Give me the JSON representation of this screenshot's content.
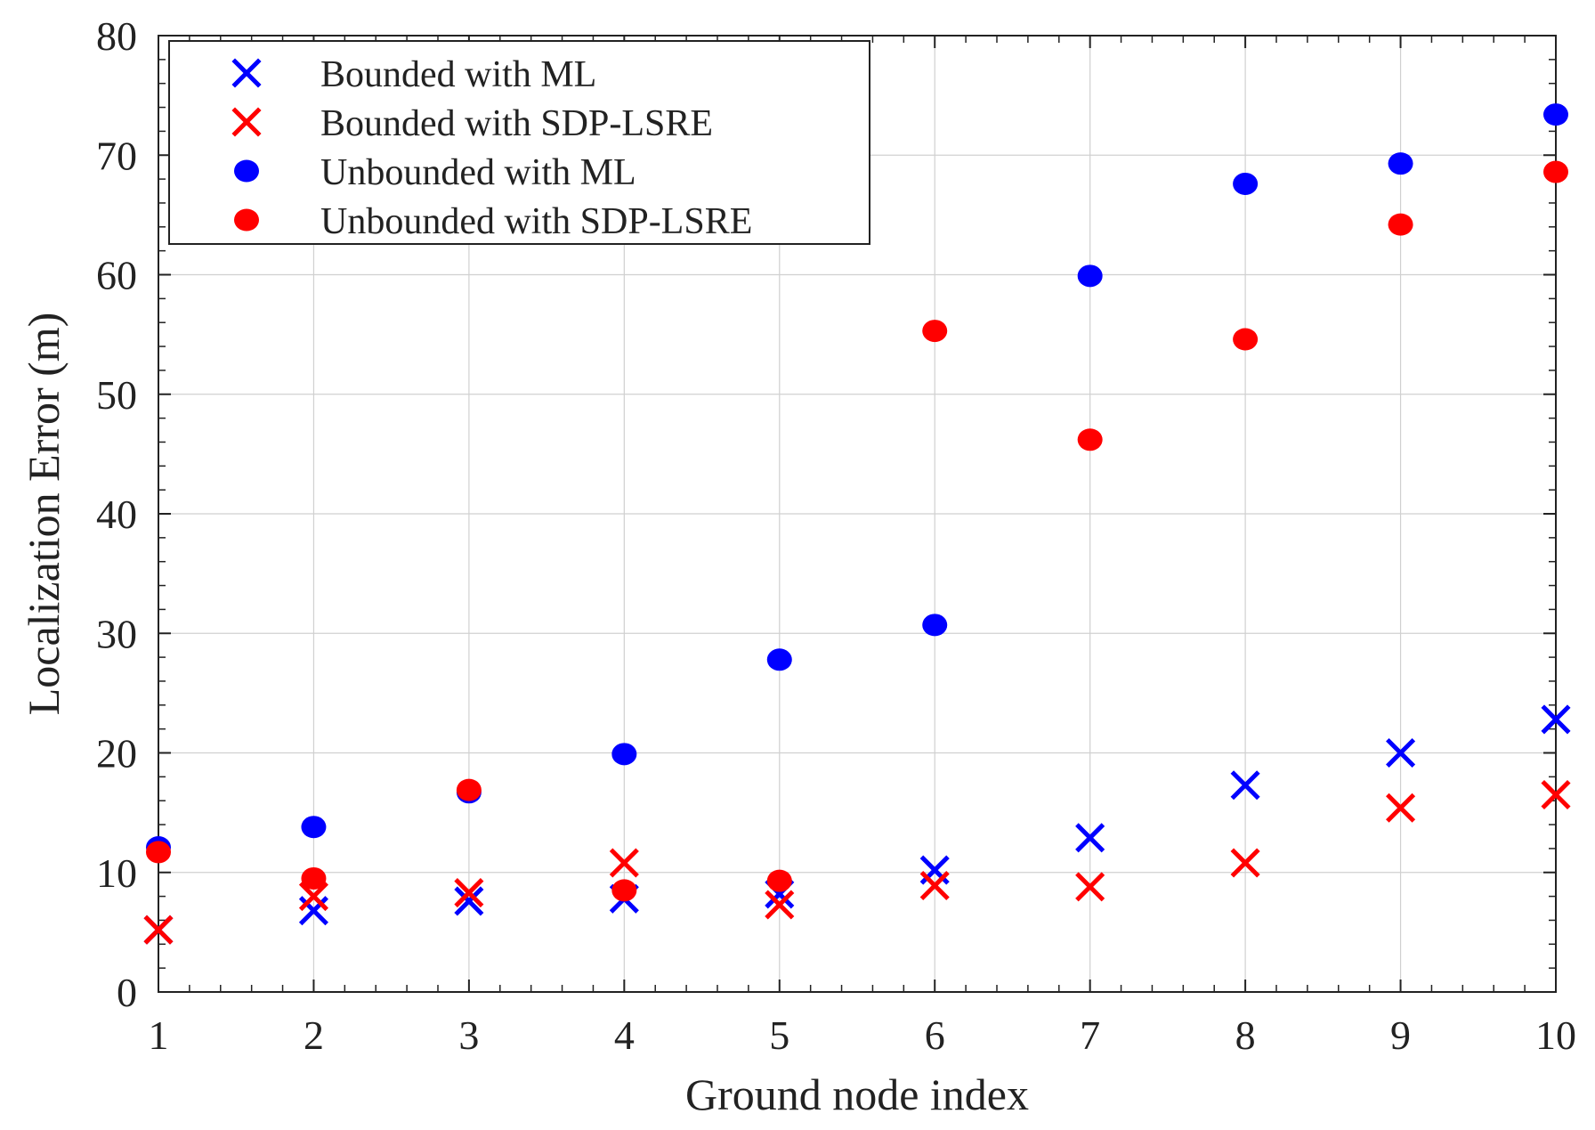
{
  "chart_data": {
    "type": "scatter",
    "title": "",
    "xlabel": "Ground node index",
    "ylabel": "Localization Error (m)",
    "xlim": [
      1,
      10
    ],
    "ylim": [
      0,
      80
    ],
    "xticks": [
      "1",
      "2",
      "3",
      "4",
      "5",
      "6",
      "7",
      "8",
      "9",
      "10"
    ],
    "yticks": [
      "0",
      "10",
      "20",
      "30",
      "40",
      "50",
      "60",
      "70",
      "80"
    ],
    "grid": true,
    "legend_position": "top-left",
    "x": [
      1,
      2,
      3,
      4,
      5,
      6,
      7,
      8,
      9,
      10
    ],
    "series": [
      {
        "name": "Bounded with ML",
        "marker": "x",
        "color": "#0000ff",
        "values": [
          5.2,
          6.8,
          7.6,
          7.8,
          8.2,
          10.2,
          12.9,
          17.3,
          20.0,
          22.8
        ]
      },
      {
        "name": "Bounded with SDP-LSRE",
        "marker": "x",
        "color": "#ff0000",
        "values": [
          5.2,
          8.0,
          8.3,
          10.8,
          7.3,
          8.9,
          8.8,
          10.8,
          15.4,
          16.5
        ]
      },
      {
        "name": "Unbounded with ML",
        "marker": "o",
        "color": "#0000ff",
        "values": [
          12.1,
          13.8,
          16.7,
          19.9,
          27.8,
          30.7,
          59.9,
          67.6,
          69.3,
          73.4
        ]
      },
      {
        "name": "Unbounded with SDP-LSRE",
        "marker": "o",
        "color": "#ff0000",
        "values": [
          11.7,
          9.5,
          16.9,
          8.5,
          9.3,
          55.3,
          46.2,
          54.6,
          64.2,
          68.6
        ]
      }
    ]
  }
}
